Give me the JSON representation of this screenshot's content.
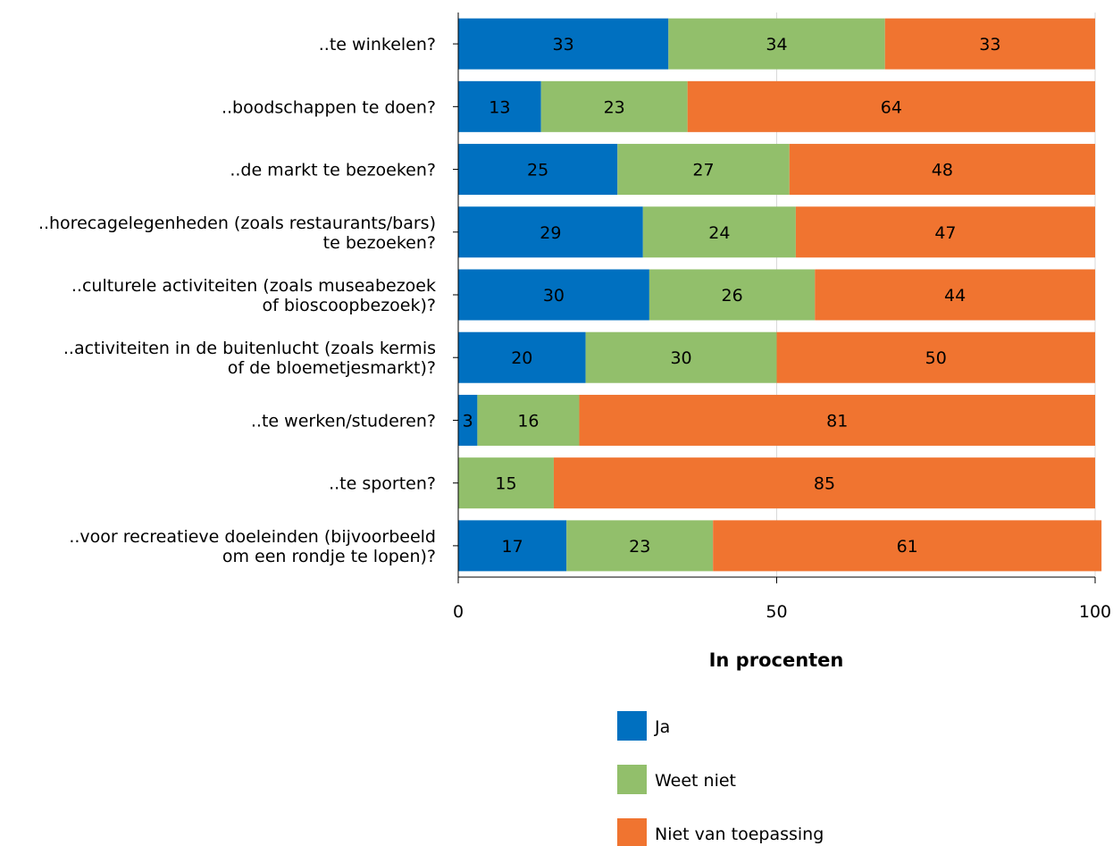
{
  "chart_data": {
    "type": "bar",
    "orientation": "horizontal",
    "stacked": true,
    "categories": [
      [
        "..te winkelen?"
      ],
      [
        "..boodschappen te doen?"
      ],
      [
        "..de markt te bezoeken?"
      ],
      [
        "..horecagelegenheden (zoals restaurants/bars)",
        "te bezoeken?"
      ],
      [
        "..culturele activiteiten (zoals museabezoek",
        "of bioscoopbezoek)?"
      ],
      [
        "..activiteiten in de buitenlucht (zoals kermis",
        "of de bloemetjesmarkt)?"
      ],
      [
        "..te werken/studeren?"
      ],
      [
        "..te sporten?"
      ],
      [
        "..voor recreatieve doeleinden (bijvoorbeeld",
        "om een rondje te lopen)?"
      ]
    ],
    "series": [
      {
        "name": "Ja",
        "color": "#0070c0",
        "values": [
          33,
          13,
          25,
          29,
          30,
          20,
          3,
          0,
          17
        ]
      },
      {
        "name": "Weet niet",
        "color": "#92bf6b",
        "values": [
          34,
          23,
          27,
          24,
          26,
          30,
          16,
          15,
          23
        ]
      },
      {
        "name": "Niet van toepassing",
        "color": "#f07430",
        "values": [
          33,
          64,
          48,
          47,
          44,
          50,
          81,
          85,
          61
        ]
      }
    ],
    "xlabel": "In procenten",
    "xlim": [
      0,
      100
    ],
    "xticks": [
      0,
      50,
      100
    ],
    "grid": true,
    "legend_position": "bottom"
  }
}
